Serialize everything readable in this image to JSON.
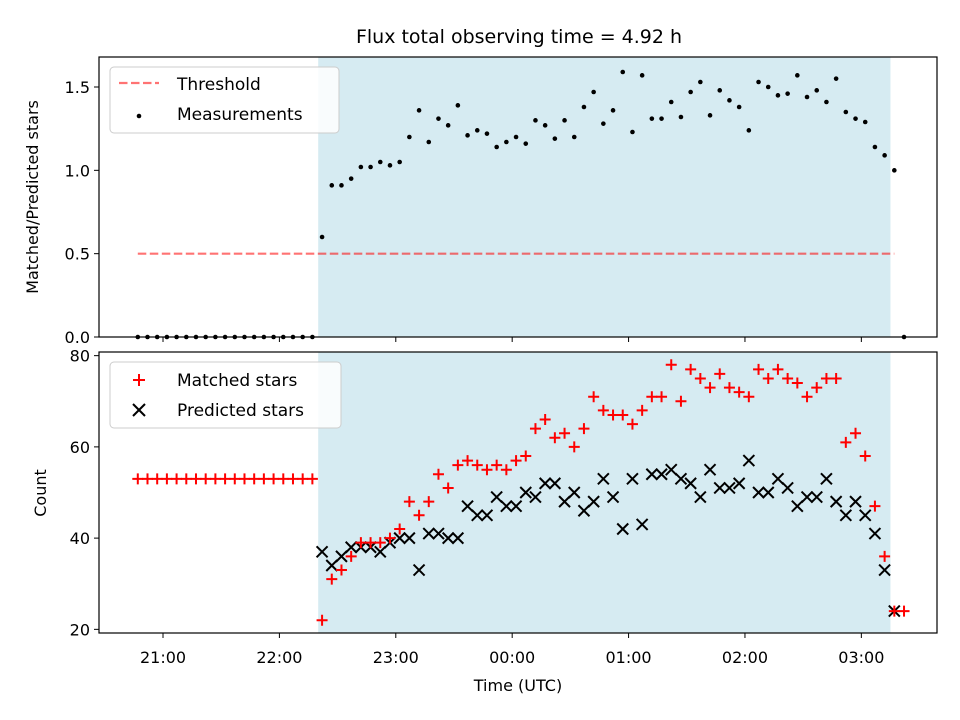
{
  "title": "Flux total observing time = 4.92 h",
  "colors": {
    "band": "#add8e6",
    "threshold": "#ff0000",
    "measurements": "#000000",
    "matched": "#ff0000",
    "predicted": "#000000"
  },
  "chart_data": [
    {
      "type": "scatter",
      "ylabel": "Matched/Predicted stars",
      "ylim": [
        0,
        1.68
      ],
      "xlim_hours": [
        -3.55,
        3.65
      ],
      "y_ticks": [
        0.0,
        0.5,
        1.0,
        1.5
      ],
      "y_tick_labels": [
        "0.0",
        "0.5",
        "1.0",
        "1.5"
      ],
      "legend": {
        "placement": "upper-left",
        "entries": [
          "Threshold",
          "Measurements"
        ]
      },
      "band": {
        "start": "22:20",
        "end": "03:15"
      },
      "threshold": {
        "name": "Threshold",
        "y": 0.5,
        "x": [
          "20:47",
          "03:17"
        ]
      },
      "series": [
        {
          "name": "Measurements",
          "marker": "dot",
          "x": [
            "20:47",
            "20:52",
            "20:57",
            "21:02",
            "21:07",
            "21:12",
            "21:17",
            "21:22",
            "21:27",
            "21:32",
            "21:37",
            "21:42",
            "21:47",
            "21:52",
            "21:57",
            "22:02",
            "22:07",
            "22:12",
            "22:17",
            "22:22",
            "22:27",
            "22:32",
            "22:37",
            "22:42",
            "22:47",
            "22:52",
            "22:57",
            "23:02",
            "23:07",
            "23:12",
            "23:17",
            "23:22",
            "23:27",
            "23:32",
            "23:37",
            "23:42",
            "23:47",
            "23:52",
            "23:57",
            "00:02",
            "00:07",
            "00:12",
            "00:17",
            "00:22",
            "00:27",
            "00:32",
            "00:37",
            "00:42",
            "00:47",
            "00:52",
            "00:57",
            "01:02",
            "01:07",
            "01:12",
            "01:17",
            "01:22",
            "01:27",
            "01:32",
            "01:37",
            "01:42",
            "01:47",
            "01:52",
            "01:57",
            "02:02",
            "02:07",
            "02:12",
            "02:17",
            "02:22",
            "02:27",
            "02:32",
            "02:37",
            "02:42",
            "02:47",
            "02:52",
            "02:57",
            "03:02",
            "03:07",
            "03:12",
            "03:17",
            "03:22"
          ],
          "y": [
            0,
            0,
            0,
            0,
            0,
            0,
            0,
            0,
            0,
            0,
            0,
            0,
            0,
            0,
            0,
            0,
            0,
            0,
            0,
            0.6,
            0.91,
            0.91,
            0.95,
            1.02,
            1.02,
            1.05,
            1.03,
            1.05,
            1.2,
            1.36,
            1.17,
            1.31,
            1.27,
            1.39,
            1.21,
            1.24,
            1.22,
            1.14,
            1.17,
            1.2,
            1.16,
            1.3,
            1.27,
            1.19,
            1.3,
            1.2,
            1.38,
            1.47,
            1.28,
            1.36,
            1.59,
            1.23,
            1.57,
            1.31,
            1.31,
            1.41,
            1.32,
            1.47,
            1.53,
            1.33,
            1.48,
            1.42,
            1.38,
            1.24,
            1.53,
            1.5,
            1.45,
            1.46,
            1.57,
            1.44,
            1.48,
            1.41,
            1.55,
            1.35,
            1.31,
            1.29,
            1.14,
            1.09,
            1.0,
            0
          ]
        }
      ]
    },
    {
      "type": "scatter",
      "xlabel": "Time (UTC)",
      "ylabel": "Count",
      "ylim": [
        19.2,
        80.8
      ],
      "xlim_hours": [
        -3.55,
        3.65
      ],
      "y_ticks": [
        20,
        40,
        60,
        80
      ],
      "x_ticks": [
        "21:00",
        "22:00",
        "23:00",
        "00:00",
        "01:00",
        "02:00",
        "03:00"
      ],
      "legend": {
        "placement": "upper-left",
        "entries": [
          "Matched stars",
          "Predicted stars"
        ]
      },
      "band": {
        "start": "22:20",
        "end": "03:15"
      },
      "series": [
        {
          "name": "Matched stars",
          "marker": "plus",
          "x": [
            "20:47",
            "20:52",
            "20:57",
            "21:02",
            "21:07",
            "21:12",
            "21:17",
            "21:22",
            "21:27",
            "21:32",
            "21:37",
            "21:42",
            "21:47",
            "21:52",
            "21:57",
            "22:02",
            "22:07",
            "22:12",
            "22:17",
            "22:22",
            "22:27",
            "22:32",
            "22:37",
            "22:42",
            "22:47",
            "22:52",
            "22:57",
            "23:02",
            "23:07",
            "23:12",
            "23:17",
            "23:22",
            "23:27",
            "23:32",
            "23:37",
            "23:42",
            "23:47",
            "23:52",
            "23:57",
            "00:02",
            "00:07",
            "00:12",
            "00:17",
            "00:22",
            "00:27",
            "00:32",
            "00:37",
            "00:42",
            "00:47",
            "00:52",
            "00:57",
            "01:02",
            "01:07",
            "01:12",
            "01:17",
            "01:22",
            "01:27",
            "01:32",
            "01:37",
            "01:42",
            "01:47",
            "01:52",
            "01:57",
            "02:02",
            "02:07",
            "02:12",
            "02:17",
            "02:22",
            "02:27",
            "02:32",
            "02:37",
            "02:42",
            "02:47",
            "02:52",
            "02:57",
            "03:02",
            "03:07",
            "03:12",
            "03:17",
            "03:22"
          ],
          "y": [
            53,
            53,
            53,
            53,
            53,
            53,
            53,
            53,
            53,
            53,
            53,
            53,
            53,
            53,
            53,
            53,
            53,
            53,
            53,
            22,
            31,
            33,
            36,
            39,
            39,
            39,
            40,
            42,
            48,
            45,
            48,
            54,
            51,
            56,
            57,
            56,
            55,
            56,
            55,
            57,
            58,
            64,
            66,
            62,
            63,
            60,
            64,
            71,
            68,
            67,
            67,
            65,
            68,
            71,
            71,
            78,
            70,
            77,
            75,
            73,
            76,
            73,
            72,
            71,
            77,
            75,
            77,
            75,
            74,
            71,
            73,
            75,
            75,
            61,
            63,
            58,
            47,
            36,
            24,
            24
          ]
        },
        {
          "name": "Predicted stars",
          "marker": "x",
          "x": [
            "22:22",
            "22:27",
            "22:32",
            "22:37",
            "22:42",
            "22:47",
            "22:52",
            "22:57",
            "23:02",
            "23:07",
            "23:12",
            "23:17",
            "23:22",
            "23:27",
            "23:32",
            "23:37",
            "23:42",
            "23:47",
            "23:52",
            "23:57",
            "00:02",
            "00:07",
            "00:12",
            "00:17",
            "00:22",
            "00:27",
            "00:32",
            "00:37",
            "00:42",
            "00:47",
            "00:52",
            "00:57",
            "01:02",
            "01:07",
            "01:12",
            "01:17",
            "01:22",
            "01:27",
            "01:32",
            "01:37",
            "01:42",
            "01:47",
            "01:52",
            "01:57",
            "02:02",
            "02:07",
            "02:12",
            "02:17",
            "02:22",
            "02:27",
            "02:32",
            "02:37",
            "02:42",
            "02:47",
            "02:52",
            "02:57",
            "03:02",
            "03:07",
            "03:12",
            "03:17"
          ],
          "y": [
            37,
            34,
            36,
            38,
            38,
            38,
            37,
            39,
            40,
            40,
            33,
            41,
            41,
            40,
            40,
            47,
            45,
            45,
            49,
            47,
            47,
            50,
            49,
            52,
            52,
            48,
            50,
            46,
            48,
            53,
            49,
            42,
            53,
            43,
            54,
            54,
            55,
            53,
            52,
            49,
            55,
            51,
            51,
            52,
            57,
            50,
            50,
            53,
            51,
            47,
            49,
            49,
            53,
            48,
            45,
            48,
            45,
            41,
            33,
            24
          ]
        }
      ]
    }
  ]
}
